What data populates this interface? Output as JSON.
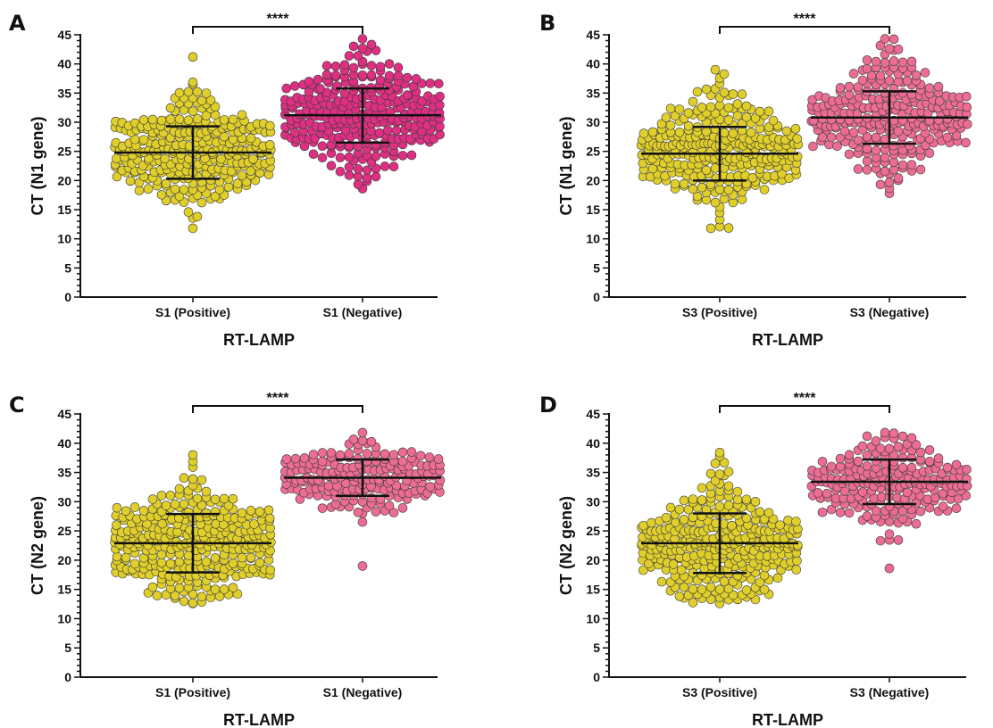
{
  "figure": {
    "colors": {
      "positive": "#e0cf2a",
      "negative_AB_A": "#de2f82",
      "negative_pink": "#ec6c93",
      "outline": "#3a3a3a"
    }
  },
  "chart_data": [
    {
      "type": "scatter",
      "panel": "A",
      "xlabel": "RT-LAMP",
      "ylabel": "CT (N1 gene)",
      "categories": [
        "S1 (Positive)",
        "S1 (Negative)"
      ],
      "ylim": [
        0,
        45
      ],
      "yticks": [
        0,
        5,
        10,
        15,
        20,
        25,
        30,
        35,
        40,
        45
      ],
      "significance": "****",
      "series": [
        {
          "mean": 24.8,
          "sd_low": 20.3,
          "sd_high": 29.3,
          "min": 11.8,
          "max": 41.2,
          "n": 300,
          "color": "#e0cf2a"
        },
        {
          "mean": 31.2,
          "sd_low": 26.5,
          "sd_high": 35.8,
          "min": 18.6,
          "max": 44.3,
          "n": 300,
          "color": "#de2f82"
        }
      ]
    },
    {
      "type": "scatter",
      "panel": "B",
      "xlabel": "RT-LAMP",
      "ylabel": "CT (N1 gene)",
      "categories": [
        "S3 (Positive)",
        "S3 (Negative)"
      ],
      "ylim": [
        0,
        45
      ],
      "yticks": [
        0,
        5,
        10,
        15,
        20,
        25,
        30,
        35,
        40,
        45
      ],
      "significance": "****",
      "series": [
        {
          "mean": 24.6,
          "sd_low": 20.0,
          "sd_high": 29.2,
          "min": 11.8,
          "max": 39.0,
          "n": 300,
          "color": "#e0cf2a"
        },
        {
          "mean": 30.8,
          "sd_low": 26.3,
          "sd_high": 35.3,
          "min": 17.8,
          "max": 44.3,
          "n": 280,
          "color": "#ec6c93"
        }
      ]
    },
    {
      "type": "scatter",
      "panel": "C",
      "xlabel": "RT-LAMP",
      "ylabel": "CT (N2 gene)",
      "categories": [
        "S1 (Positive)",
        "S1 (Negative)"
      ],
      "ylim": [
        0,
        45
      ],
      "yticks": [
        0,
        5,
        10,
        15,
        20,
        25,
        30,
        35,
        40,
        45
      ],
      "significance": "****",
      "series": [
        {
          "mean": 22.9,
          "sd_low": 17.9,
          "sd_high": 27.9,
          "min": 12.6,
          "max": 38.0,
          "n": 330,
          "color": "#e0cf2a"
        },
        {
          "mean": 34.1,
          "sd_low": 31.0,
          "sd_high": 37.2,
          "min": 19.0,
          "max": 41.8,
          "n": 200,
          "color": "#ec6c93"
        }
      ]
    },
    {
      "type": "scatter",
      "panel": "D",
      "xlabel": "RT-LAMP",
      "ylabel": "CT (N2 gene)",
      "categories": [
        "S3 (Positive)",
        "S3 (Negative)"
      ],
      "ylim": [
        0,
        45
      ],
      "yticks": [
        0,
        5,
        10,
        15,
        20,
        25,
        30,
        35,
        40,
        45
      ],
      "significance": "****",
      "series": [
        {
          "mean": 22.9,
          "sd_low": 17.8,
          "sd_high": 28.0,
          "min": 12.6,
          "max": 38.4,
          "n": 330,
          "color": "#e0cf2a"
        },
        {
          "mean": 33.4,
          "sd_low": 29.6,
          "sd_high": 37.2,
          "min": 18.6,
          "max": 41.8,
          "n": 220,
          "color": "#ec6c93"
        }
      ]
    }
  ]
}
